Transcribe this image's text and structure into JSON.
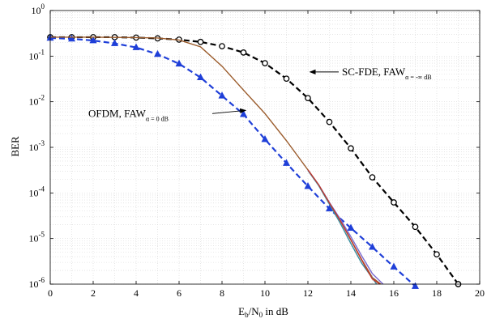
{
  "chart_data": {
    "type": "line",
    "xlabel_main": "E",
    "xlabel_sub1": "b",
    "xlabel_mid": "/N",
    "xlabel_sub2": "0",
    "xlabel_tail": " in dB",
    "ylabel": "BER",
    "xlim": [
      0,
      20
    ],
    "ylim": [
      1e-06,
      1
    ],
    "yscale": "log",
    "grid": true,
    "x_ticks": [
      "0",
      "2",
      "4",
      "6",
      "8",
      "10",
      "12",
      "14",
      "16",
      "18",
      "20"
    ],
    "y_ticks": [
      {
        "base": "10",
        "exp": "0"
      },
      {
        "base": "10",
        "exp": "-1"
      },
      {
        "base": "10",
        "exp": "-2"
      },
      {
        "base": "10",
        "exp": "-3"
      },
      {
        "base": "10",
        "exp": "-4"
      },
      {
        "base": "10",
        "exp": "-5"
      },
      {
        "base": "10",
        "exp": "-6"
      }
    ],
    "annotations": [
      {
        "main": "SC-FDE, FAW",
        "sub": "α = -∞ dB",
        "text_x": 11.8,
        "text_y": 0.045,
        "arrow_to_x": 12.1,
        "arrow_to_y": 0.045
      },
      {
        "main": "OFDM, FAW",
        "sub": "α = 0 dB",
        "text_x": 2.0,
        "text_y": 0.0055,
        "arrow_to_x": 9.1,
        "arrow_to_y": 0.0055
      }
    ],
    "series": [
      {
        "style": "dashed-circle",
        "color": "#000000",
        "x": [
          0,
          1,
          2,
          3,
          4,
          5,
          6,
          7,
          8,
          9,
          10,
          11,
          12,
          13,
          14,
          15,
          16,
          17,
          18,
          19
        ],
        "y": [
          0.26,
          0.26,
          0.26,
          0.26,
          0.255,
          0.245,
          0.23,
          0.205,
          0.165,
          0.12,
          0.07,
          0.032,
          0.012,
          0.0036,
          0.00095,
          0.00022,
          6.2e-05,
          1.8e-05,
          4.5e-06,
          1e-06
        ]
      },
      {
        "style": "dashed-triangle",
        "color": "#1f3fd8",
        "x": [
          0,
          1,
          2,
          3,
          4,
          5,
          6,
          7,
          8,
          9,
          10,
          11,
          12,
          13,
          14,
          15,
          16,
          17
        ],
        "y": [
          0.25,
          0.24,
          0.22,
          0.19,
          0.155,
          0.11,
          0.068,
          0.034,
          0.0135,
          0.0053,
          0.0015,
          0.00045,
          0.00014,
          4.5e-05,
          1.7e-05,
          6.5e-06,
          2.4e-06,
          9e-07
        ]
      },
      {
        "style": "solid",
        "color": "#9a5a2a",
        "x": [
          0,
          2,
          4,
          5,
          6,
          7,
          8,
          9,
          10,
          11,
          12,
          12.5,
          13,
          13.5,
          14,
          14.5,
          15,
          15.4
        ],
        "y": [
          0.26,
          0.26,
          0.255,
          0.25,
          0.225,
          0.16,
          0.06,
          0.018,
          0.0055,
          0.0014,
          0.00032,
          0.00015,
          6e-05,
          2.5e-05,
          9.5e-06,
          3.5e-06,
          1.4e-06,
          1e-06
        ]
      },
      {
        "style": "solid",
        "color": "#3a8fa0",
        "x": [
          12,
          12.5,
          13,
          13.5,
          14,
          14.5,
          15.2
        ],
        "y": [
          0.00031,
          0.000145,
          5.7e-05,
          2.2e-05,
          7.8e-06,
          2.9e-06,
          1e-06
        ]
      },
      {
        "style": "solid",
        "color": "#7a6ad0",
        "x": [
          12,
          12.5,
          13,
          13.5,
          14,
          14.5,
          15,
          15.5
        ],
        "y": [
          0.00032,
          0.000152,
          6.2e-05,
          2.7e-05,
          1.1e-05,
          4.2e-06,
          1.7e-06,
          1e-06
        ]
      },
      {
        "style": "solid",
        "color": "#c0392b",
        "x": [
          12,
          12.5,
          13,
          13.5,
          14,
          14.5,
          15,
          15.35
        ],
        "y": [
          0.000322,
          0.000151,
          6.05e-05,
          2.5e-05,
          9.3e-06,
          3.4e-06,
          1.3e-06,
          1e-06
        ]
      }
    ]
  }
}
